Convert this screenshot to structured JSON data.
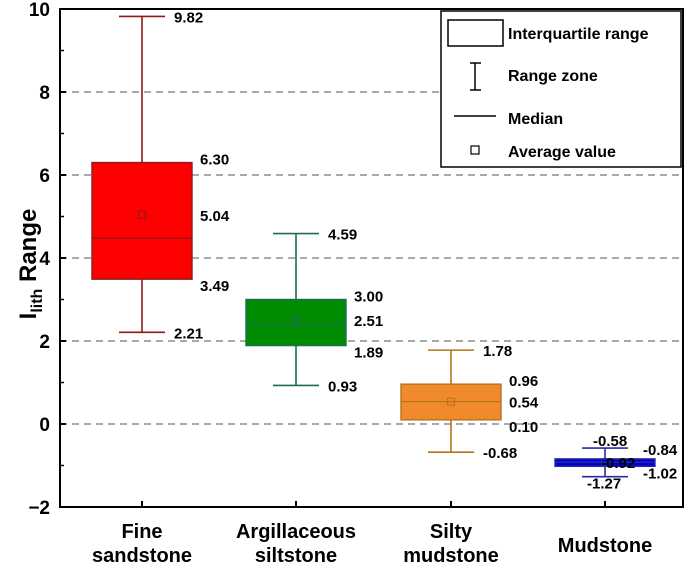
{
  "chart_data": {
    "type": "box",
    "title": "",
    "ylabel": {
      "main": "I",
      "subscript": "lith",
      "suffix": " Range"
    },
    "xlabel": "",
    "ylim": [
      -2,
      10
    ],
    "yticks": [
      -2,
      0,
      2,
      4,
      6,
      8,
      10
    ],
    "ytick_labels": [
      "−2",
      "0",
      "2",
      "4",
      "6",
      "8",
      "10"
    ],
    "grid": "dashed-horizontal",
    "legend_position": "top-right",
    "legend": [
      {
        "key": "iqr",
        "label": "Interquartile range"
      },
      {
        "key": "range",
        "label": "Range zone"
      },
      {
        "key": "median",
        "label": "Median"
      },
      {
        "key": "mean",
        "label": "Average value"
      }
    ],
    "series": [
      {
        "category_lines": [
          "Fine",
          "sandstone"
        ],
        "color": "#ff0000",
        "whisker_color": "#8b1a1a",
        "min": 2.21,
        "q1": 3.49,
        "median": 4.48,
        "mean": 5.04,
        "q3": 6.3,
        "max": 9.82,
        "labels": {
          "max": "9.82",
          "q3": "6.30",
          "mean": "5.04",
          "q1": "3.49",
          "min": "2.21"
        }
      },
      {
        "category_lines": [
          "Argillaceous",
          "siltstone"
        ],
        "color": "#008c00",
        "whisker_color": "#1d6b57",
        "min": 0.93,
        "q1": 1.89,
        "median": 2.4,
        "mean": 2.51,
        "q3": 3.0,
        "max": 4.59,
        "labels": {
          "max": "4.59",
          "q3": "3.00",
          "mean": "2.51",
          "q1": "1.89",
          "min": "0.93"
        }
      },
      {
        "category_lines": [
          "Silty",
          "mudstone"
        ],
        "color": "#f08a2c",
        "whisker_color": "#b8731c",
        "min": -0.68,
        "q1": 0.1,
        "median": 0.54,
        "mean": 0.54,
        "q3": 0.96,
        "max": 1.78,
        "labels": {
          "max": "1.78",
          "q3": "0.96",
          "mean": "0.54",
          "q1": "0.10",
          "min": "-0.68"
        }
      },
      {
        "category_lines": [
          "Mudstone"
        ],
        "color": "#0000cc",
        "whisker_color": "#2a2aa8",
        "min": -1.27,
        "q1": -1.02,
        "median": -0.92,
        "mean": -0.92,
        "q3": -0.84,
        "max": -0.58,
        "labels": {
          "max": "-0.58",
          "q3": "-0.84",
          "mean": "-0.92",
          "q1": "-1.02",
          "min": "-1.27"
        }
      }
    ]
  }
}
